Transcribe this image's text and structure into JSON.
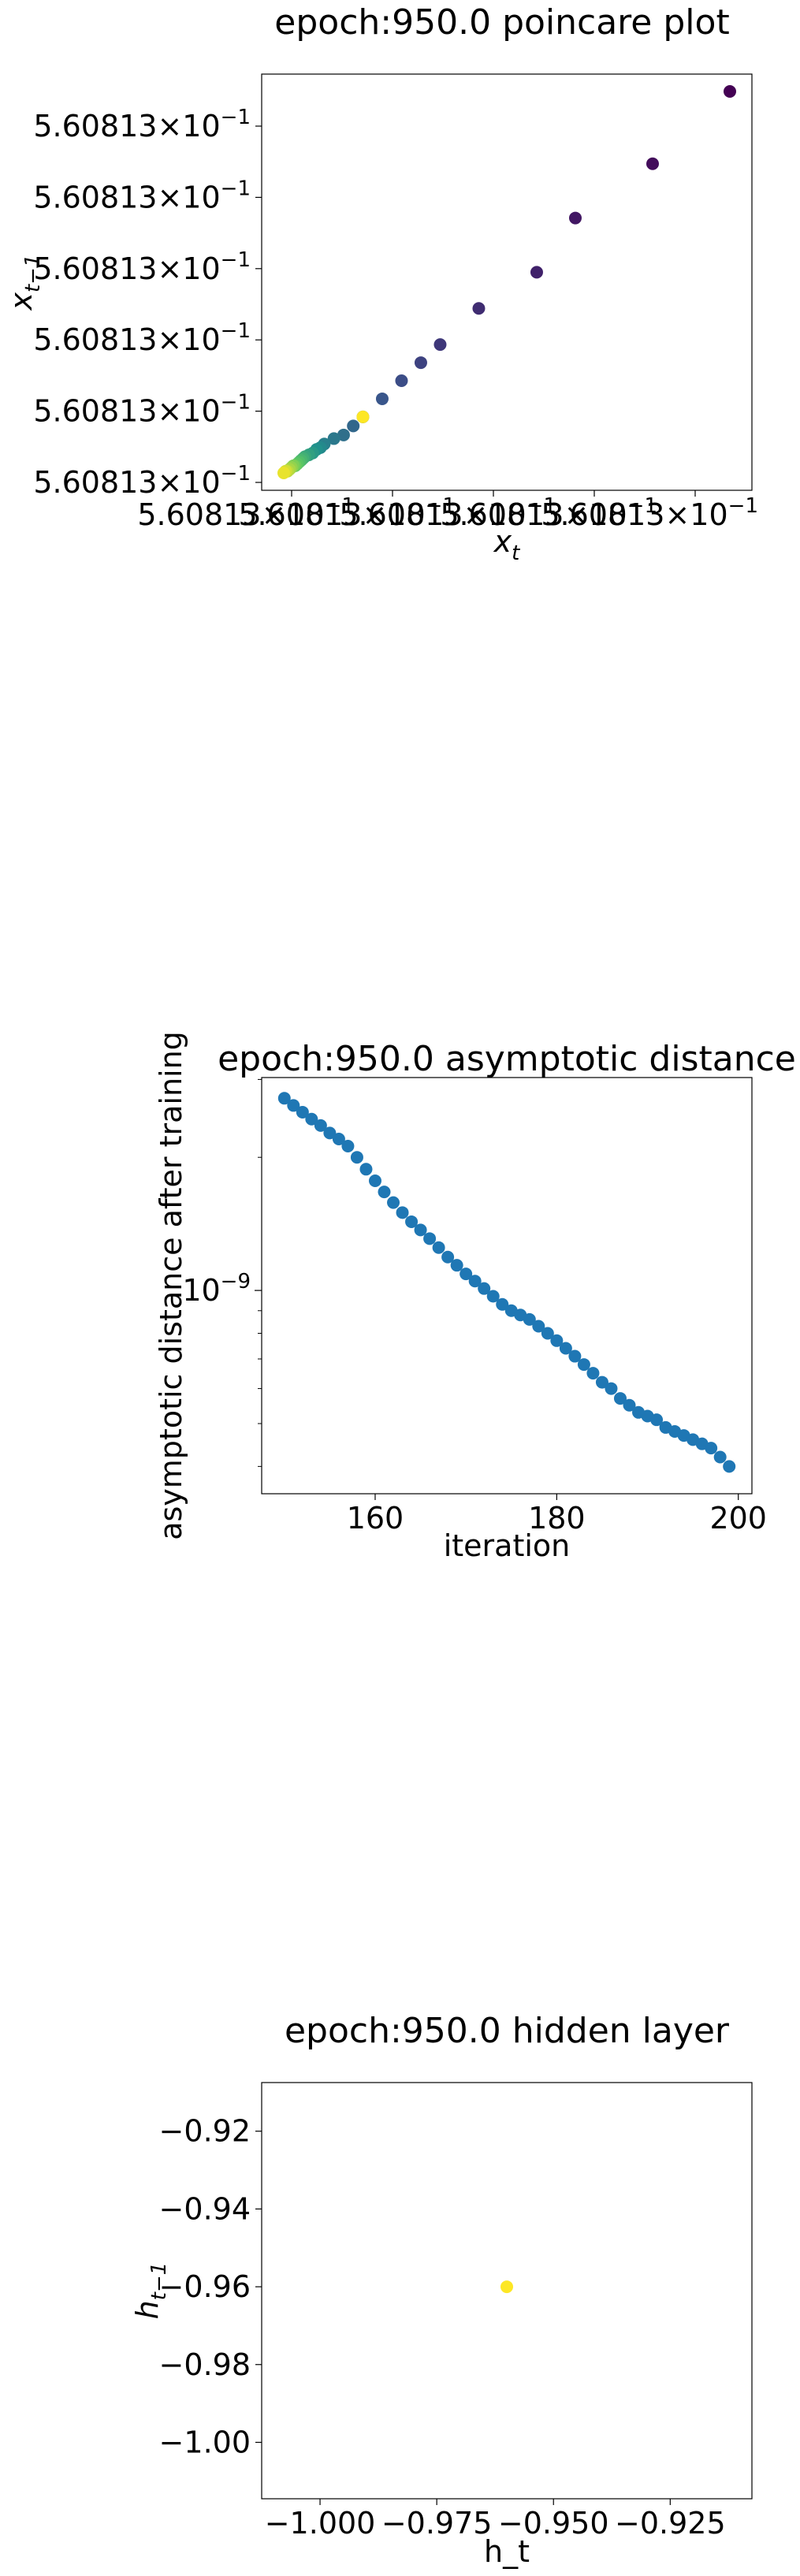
{
  "chart_data": [
    {
      "type": "scatter",
      "title": "epoch:950.0 poincare plot",
      "xlabel_base": "x",
      "xlabel_sub": "t",
      "ylabel_base": "x",
      "ylabel_sub": "t−1",
      "tick_mantissa": "5.60813",
      "tick_exponent": "−1",
      "x_ticks_shown": 5,
      "y_ticks_shown": 6,
      "colormap": "viridis",
      "points": [
        {
          "x": 0.5608134,
          "y": 0.5608135
        },
        {
          "x": 0.560813,
          "y": 0.5608131
        },
        {
          "x": 0.5608126,
          "y": 0.5608128
        },
        {
          "x": 0.5608124,
          "y": 0.5608125
        },
        {
          "x": 0.5608121,
          "y": 0.5608123
        },
        {
          "x": 0.5608119,
          "y": 0.5608121
        },
        {
          "x": 0.5608118,
          "y": 0.560812
        },
        {
          "x": 0.5608117,
          "y": 0.5608119
        },
        {
          "x": 0.5608116,
          "y": 0.5608118
        },
        {
          "x": 0.5608115,
          "y": 0.5608117
        },
        {
          "x": 0.56081145,
          "y": 0.56081165
        },
        {
          "x": 0.5608114,
          "y": 0.5608116
        },
        {
          "x": 0.56081135,
          "y": 0.56081158
        },
        {
          "x": 0.5608113,
          "y": 0.56081155
        },
        {
          "x": 0.56081128,
          "y": 0.56081153
        },
        {
          "x": 0.56081126,
          "y": 0.56081152
        },
        {
          "x": 0.56081124,
          "y": 0.5608115
        },
        {
          "x": 0.56081122,
          "y": 0.56081149
        },
        {
          "x": 0.5608112,
          "y": 0.56081148
        },
        {
          "x": 0.56081119,
          "y": 0.56081147
        },
        {
          "x": 0.56081118,
          "y": 0.56081146
        },
        {
          "x": 0.56081117,
          "y": 0.56081145
        },
        {
          "x": 0.56081116,
          "y": 0.56081144
        },
        {
          "x": 0.56081115,
          "y": 0.56081143
        },
        {
          "x": 0.56081114,
          "y": 0.56081143
        },
        {
          "x": 0.56081113,
          "y": 0.56081142
        },
        {
          "x": 0.56081112,
          "y": 0.56081141
        },
        {
          "x": 0.56081111,
          "y": 0.5608114
        },
        {
          "x": 0.5608111,
          "y": 0.5608114
        },
        {
          "x": 0.56081109,
          "y": 0.56081139
        },
        {
          "x": 0.5608115,
          "y": 0.5608117
        }
      ]
    },
    {
      "type": "scatter",
      "title": "epoch:950.0 asymptotic distance",
      "xlabel": "iteration",
      "ylabel": "asymptotic distance after training",
      "yscale": "log",
      "xlim": [
        147.5,
        201.5
      ],
      "ylim": [
        3.47e-10,
        3.03e-09
      ],
      "x_ticks": [
        160,
        180,
        200
      ],
      "y_ticks": [
        {
          "value": 1e-09,
          "base": "10",
          "exp": "−9"
        }
      ],
      "color": "#1f77b4",
      "x": [
        150,
        151,
        152,
        153,
        154,
        155,
        156,
        157,
        158,
        159,
        160,
        161,
        162,
        163,
        164,
        165,
        166,
        167,
        168,
        169,
        170,
        171,
        172,
        173,
        174,
        175,
        176,
        177,
        178,
        179,
        180,
        181,
        182,
        183,
        184,
        185,
        186,
        187,
        188,
        189,
        190,
        191,
        192,
        193,
        194,
        195,
        196,
        197,
        198,
        199
      ],
      "y": [
        2.72e-09,
        2.62e-09,
        2.53e-09,
        2.44e-09,
        2.36e-09,
        2.27e-09,
        2.2e-09,
        2.12e-09,
        2e-09,
        1.88e-09,
        1.77e-09,
        1.67e-09,
        1.58e-09,
        1.5e-09,
        1.43e-09,
        1.37e-09,
        1.31e-09,
        1.25e-09,
        1.19e-09,
        1.14e-09,
        1.09e-09,
        1.05e-09,
        1.01e-09,
        9.7e-10,
        9.3e-10,
        9e-10,
        8.8e-10,
        8.6e-10,
        8.3e-10,
        8e-10,
        7.7e-10,
        7.4e-10,
        7.1e-10,
        6.8e-10,
        6.5e-10,
        6.2e-10,
        6e-10,
        5.7e-10,
        5.5e-10,
        5.3e-10,
        5.2e-10,
        5.1e-10,
        4.9e-10,
        4.8e-10,
        4.7e-10,
        4.6e-10,
        4.5e-10,
        4.4e-10,
        4.2e-10,
        4e-10
      ]
    },
    {
      "type": "scatter",
      "title": "epoch:950.0 hidden layer",
      "xlabel": "h_t",
      "ylabel_base": "h",
      "ylabel_sub": "t−1",
      "xlim": [
        -1.0125,
        -0.9075
      ],
      "ylim": [
        -1.0145,
        -0.9075
      ],
      "x_ticks": [
        -1.0,
        -0.975,
        -0.95,
        -0.925
      ],
      "x_tick_labels": [
        "−1.000",
        "−0.975",
        "−0.950",
        "−0.925"
      ],
      "y_ticks": [
        -0.92,
        -0.94,
        -0.96,
        -0.98,
        -1.0
      ],
      "y_tick_labels": [
        "−0.92",
        "−0.94",
        "−0.96",
        "−0.98",
        "−1.00"
      ],
      "color": "#fde725",
      "points": [
        {
          "x": -0.96,
          "y": -0.96
        }
      ]
    }
  ]
}
